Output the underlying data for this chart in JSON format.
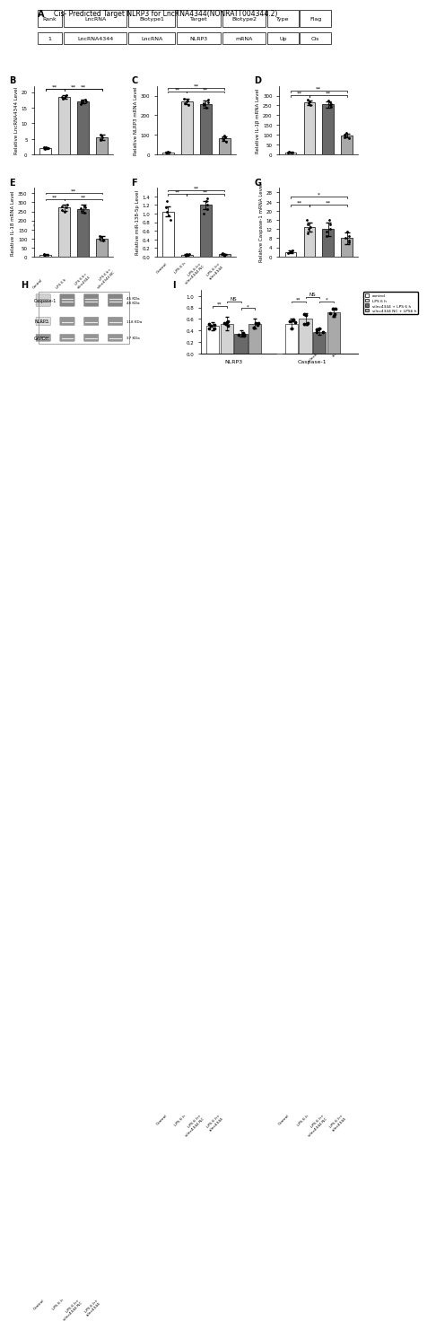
{
  "table_title": "Cis- Predicted Target NLRP3 for LncRNA4344(NONRATT004344.2)",
  "table_headers": [
    "Rank",
    "LncRNA",
    "Biotype1",
    "Target",
    "Biotype2",
    "Type",
    "Flag"
  ],
  "table_row": [
    "1",
    "LncRNA4344",
    "LncRNA",
    "NLRP3",
    "mRNA",
    "Up",
    "Cis"
  ],
  "panel_labels": [
    "B",
    "C",
    "D",
    "E",
    "F",
    "G"
  ],
  "xlabels": [
    "Control",
    "LPS 6 h",
    "LPS 6 h+silnc4344 NC",
    "LPS 6 h+silnc4344"
  ],
  "bar_colors": [
    "#ffffff",
    "#d3d3d3",
    "#696969",
    "#a9a9a9"
  ],
  "bar_edge": "#000000",
  "B_ylabel": "Relative LncRNA4344 Level",
  "B_ylim": [
    0,
    22
  ],
  "B_yticks": [
    0,
    5,
    10,
    15,
    20
  ],
  "B_bars": [
    2.0,
    18.5,
    17.0,
    5.5
  ],
  "B_errors": [
    0.3,
    0.6,
    0.6,
    0.8
  ],
  "B_dots": [
    [
      1.7,
      1.9,
      2.1,
      2.2,
      2.3
    ],
    [
      17.8,
      18.5,
      19.0,
      18.2,
      18.8
    ],
    [
      16.2,
      17.0,
      17.5,
      16.8,
      17.3
    ],
    [
      4.5,
      5.0,
      5.5,
      6.0,
      6.2
    ]
  ],
  "C_ylabel": "Relative NLRP3 mRNA Level",
  "C_ylim": [
    0,
    350
  ],
  "C_yticks": [
    0,
    100,
    200,
    300
  ],
  "C_bars": [
    10.0,
    270.0,
    255.0,
    80.0
  ],
  "C_errors": [
    2.0,
    15.0,
    18.0,
    12.0
  ],
  "C_dots": [
    [
      8,
      9,
      10,
      11,
      12
    ],
    [
      250,
      260,
      270,
      275,
      285
    ],
    [
      240,
      250,
      260,
      265,
      280
    ],
    [
      65,
      75,
      80,
      88,
      95
    ]
  ],
  "D_ylabel": "Relative IL-1β mRNA Level",
  "D_ylim": [
    0,
    350
  ],
  "D_yticks": [
    0,
    50,
    100,
    150,
    200,
    250,
    300
  ],
  "D_bars": [
    10.0,
    265.0,
    255.0,
    95.0
  ],
  "D_errors": [
    2.0,
    12.0,
    15.0,
    10.0
  ],
  "D_dots": [
    [
      8,
      9,
      10,
      11,
      12
    ],
    [
      250,
      260,
      270,
      272,
      278
    ],
    [
      242,
      250,
      258,
      265,
      275
    ],
    [
      82,
      88,
      95,
      100,
      108
    ]
  ],
  "E_ylabel": "Relative IL-18 mRNA Level",
  "E_ylim": [
    0,
    380
  ],
  "E_yticks": [
    0,
    50,
    100,
    150,
    200,
    250,
    300,
    350
  ],
  "E_bars": [
    10.0,
    270.0,
    265.0,
    100.0
  ],
  "E_errors": [
    1.5,
    18.0,
    20.0,
    12.0
  ],
  "E_dots": [
    [
      8,
      9,
      10,
      11,
      12
    ],
    [
      248,
      260,
      272,
      278,
      285
    ],
    [
      242,
      255,
      268,
      272,
      282
    ],
    [
      88,
      95,
      100,
      108,
      115
    ]
  ],
  "F_ylabel": "Relative miR-138-5p Level",
  "F_ylim": [
    0,
    1.6
  ],
  "F_yticks": [
    0.0,
    0.2,
    0.4,
    0.6,
    0.8,
    1.0,
    1.2,
    1.4
  ],
  "F_bars": [
    1.05,
    0.04,
    1.2,
    0.05
  ],
  "F_errors": [
    0.12,
    0.01,
    0.1,
    0.01
  ],
  "F_dots": [
    [
      0.85,
      0.95,
      1.05,
      1.15,
      1.3
    ],
    [
      0.02,
      0.03,
      0.04,
      0.05,
      0.06
    ],
    [
      1.0,
      1.1,
      1.2,
      1.3,
      1.35
    ],
    [
      0.02,
      0.03,
      0.05,
      0.06,
      0.07
    ]
  ],
  "G_ylabel": "Relative Caspase-1 mRNA Level",
  "G_ylim": [
    0,
    30
  ],
  "G_yticks": [
    0,
    4,
    8,
    12,
    16,
    20,
    24,
    28
  ],
  "G_bars": [
    2.0,
    13.0,
    12.0,
    8.0
  ],
  "G_errors": [
    0.5,
    2.0,
    3.0,
    2.5
  ],
  "G_dots": [
    [
      1.5,
      1.8,
      2.0,
      2.2,
      2.5
    ],
    [
      10,
      12,
      13,
      14,
      16
    ],
    [
      9,
      11,
      12,
      14,
      16
    ],
    [
      6,
      7,
      8,
      9,
      11
    ]
  ],
  "I_NLRP3_bars": [
    0.48,
    0.52,
    0.35,
    0.52
  ],
  "I_NLRP3_errors": [
    0.07,
    0.12,
    0.06,
    0.08
  ],
  "I_Caspase1_bars": [
    0.52,
    0.6,
    0.38,
    0.72
  ],
  "I_Caspase1_errors": [
    0.08,
    0.1,
    0.06,
    0.08
  ],
  "I_ylim": [
    0.0,
    1.1
  ],
  "I_yticks": [
    0.0,
    0.2,
    0.4,
    0.6,
    0.8,
    1.0
  ],
  "western_labels": [
    "Caspase-1",
    "NLRP3",
    "GAPDH"
  ],
  "western_kda": [
    "45 KDa\n48 KDa",
    "118 KDa",
    "37 KDa"
  ],
  "legend_labels": [
    "control",
    "LPS 6 h",
    "silnc4344 + LPS 6 h",
    "silnc4344 NC + LPS6 h"
  ]
}
